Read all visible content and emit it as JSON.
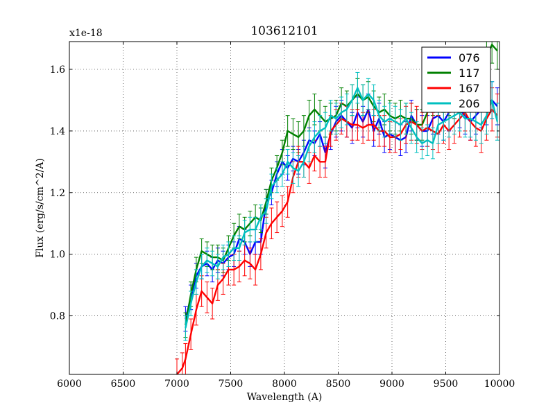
{
  "chart_data": {
    "type": "line",
    "title": "103612101",
    "xlabel": "Wavelength (A)",
    "ylabel": "Flux (erg/s/cm^2/A)",
    "offset_text": "x1e-18",
    "xlim": [
      6000,
      10000
    ],
    "ylim": [
      0.61,
      1.69
    ],
    "grid": true,
    "legend_position": "top-right",
    "x_ticks": [
      6000,
      6500,
      7000,
      7500,
      8000,
      8500,
      9000,
      9500,
      10000
    ],
    "x_tick_labels": [
      "6000",
      "6500",
      "7000",
      "7500",
      "8000",
      "8500",
      "9000",
      "9500",
      "10000"
    ],
    "y_ticks": [
      0.8,
      1.0,
      1.2,
      1.4,
      1.6
    ],
    "y_tick_labels": [
      "0.8",
      "1.0",
      "1.2",
      "1.4",
      "1.6"
    ],
    "series": [
      {
        "name": "076",
        "color": "#0000ff",
        "x": [
          7080,
          7130,
          7180,
          7230,
          7280,
          7330,
          7380,
          7430,
          7480,
          7530,
          7580,
          7630,
          7680,
          7730,
          7780,
          7830,
          7880,
          7930,
          7980,
          8030,
          8080,
          8130,
          8180,
          8230,
          8280,
          8330,
          8380,
          8430,
          8480,
          8530,
          8580,
          8630,
          8680,
          8730,
          8780,
          8830,
          8880,
          8930,
          8980,
          9030,
          9080,
          9130,
          9180,
          9230,
          9280,
          9330,
          9380,
          9430,
          9480,
          9530,
          9580,
          9630,
          9680,
          9730,
          9780,
          9830,
          9880,
          9930,
          9980
        ],
        "y": [
          0.79,
          0.86,
          0.93,
          0.96,
          0.97,
          0.95,
          0.98,
          0.97,
          0.99,
          1.0,
          1.05,
          1.04,
          1.0,
          1.04,
          1.04,
          1.17,
          1.2,
          1.26,
          1.3,
          1.28,
          1.31,
          1.3,
          1.33,
          1.37,
          1.36,
          1.39,
          1.33,
          1.39,
          1.43,
          1.45,
          1.43,
          1.41,
          1.46,
          1.43,
          1.47,
          1.4,
          1.44,
          1.38,
          1.39,
          1.38,
          1.37,
          1.38,
          1.45,
          1.42,
          1.4,
          1.4,
          1.44,
          1.45,
          1.43,
          1.46,
          1.5,
          1.47,
          1.45,
          1.43,
          1.45,
          1.47,
          1.48,
          1.5,
          1.48
        ],
        "err": [
          0.04,
          0.04,
          0.04,
          0.04,
          0.04,
          0.04,
          0.04,
          0.04,
          0.04,
          0.04,
          0.04,
          0.04,
          0.04,
          0.04,
          0.04,
          0.04,
          0.04,
          0.04,
          0.04,
          0.04,
          0.04,
          0.04,
          0.04,
          0.04,
          0.04,
          0.04,
          0.05,
          0.05,
          0.05,
          0.05,
          0.05,
          0.05,
          0.05,
          0.05,
          0.05,
          0.05,
          0.05,
          0.05,
          0.05,
          0.05,
          0.05,
          0.05,
          0.05,
          0.05,
          0.05,
          0.05,
          0.05,
          0.06,
          0.06,
          0.06,
          0.06,
          0.06,
          0.06,
          0.06,
          0.06,
          0.06,
          0.06,
          0.06,
          0.06
        ]
      },
      {
        "name": "117",
        "color": "#008000",
        "x": [
          7080,
          7130,
          7180,
          7230,
          7280,
          7330,
          7380,
          7430,
          7480,
          7530,
          7580,
          7630,
          7680,
          7730,
          7780,
          7830,
          7880,
          7930,
          7980,
          8030,
          8080,
          8130,
          8180,
          8230,
          8280,
          8330,
          8380,
          8430,
          8480,
          8530,
          8580,
          8630,
          8680,
          8730,
          8780,
          8830,
          8880,
          8930,
          8980,
          9030,
          9080,
          9130,
          9180,
          9230,
          9280,
          9330,
          9380,
          9430,
          9480,
          9530,
          9580,
          9630,
          9680,
          9730,
          9780,
          9830,
          9880,
          9930,
          9980
        ],
        "y": [
          0.77,
          0.87,
          0.95,
          1.01,
          1.0,
          0.99,
          0.99,
          0.98,
          1.02,
          1.06,
          1.09,
          1.08,
          1.1,
          1.12,
          1.11,
          1.17,
          1.24,
          1.28,
          1.33,
          1.4,
          1.39,
          1.38,
          1.4,
          1.45,
          1.47,
          1.45,
          1.43,
          1.44,
          1.45,
          1.49,
          1.48,
          1.5,
          1.52,
          1.5,
          1.51,
          1.48,
          1.46,
          1.47,
          1.45,
          1.44,
          1.45,
          1.44,
          1.44,
          1.42,
          1.42,
          1.46,
          1.5,
          1.51,
          1.52,
          1.51,
          1.5,
          1.52,
          1.55,
          1.56,
          1.58,
          1.6,
          1.64,
          1.68,
          1.66
        ],
        "err": [
          0.04,
          0.04,
          0.04,
          0.04,
          0.04,
          0.04,
          0.04,
          0.04,
          0.04,
          0.04,
          0.04,
          0.04,
          0.04,
          0.04,
          0.04,
          0.04,
          0.04,
          0.04,
          0.04,
          0.05,
          0.05,
          0.05,
          0.05,
          0.05,
          0.05,
          0.05,
          0.05,
          0.05,
          0.05,
          0.05,
          0.05,
          0.05,
          0.05,
          0.05,
          0.05,
          0.05,
          0.05,
          0.05,
          0.05,
          0.05,
          0.05,
          0.05,
          0.05,
          0.05,
          0.05,
          0.05,
          0.05,
          0.06,
          0.06,
          0.06,
          0.06,
          0.06,
          0.06,
          0.06,
          0.06,
          0.06,
          0.06,
          0.06,
          0.06
        ]
      },
      {
        "name": "167",
        "color": "#ff0000",
        "x": [
          7000,
          7050,
          7080,
          7130,
          7180,
          7230,
          7280,
          7330,
          7380,
          7430,
          7480,
          7530,
          7580,
          7630,
          7680,
          7730,
          7780,
          7830,
          7880,
          7930,
          7980,
          8030,
          8080,
          8130,
          8180,
          8230,
          8280,
          8330,
          8380,
          8430,
          8480,
          8530,
          8580,
          8630,
          8680,
          8730,
          8780,
          8830,
          8880,
          8930,
          8980,
          9030,
          9080,
          9130,
          9180,
          9230,
          9280,
          9330,
          9380,
          9430,
          9480,
          9530,
          9580,
          9630,
          9680,
          9730,
          9780,
          9830,
          9880,
          9930,
          9980
        ],
        "y": [
          0.61,
          0.63,
          0.66,
          0.74,
          0.82,
          0.88,
          0.86,
          0.84,
          0.9,
          0.92,
          0.95,
          0.95,
          0.96,
          0.98,
          0.97,
          0.95,
          1.0,
          1.07,
          1.1,
          1.12,
          1.14,
          1.17,
          1.25,
          1.3,
          1.3,
          1.28,
          1.32,
          1.3,
          1.3,
          1.4,
          1.42,
          1.44,
          1.43,
          1.42,
          1.42,
          1.41,
          1.42,
          1.42,
          1.4,
          1.4,
          1.38,
          1.38,
          1.39,
          1.42,
          1.43,
          1.42,
          1.4,
          1.41,
          1.4,
          1.39,
          1.42,
          1.4,
          1.42,
          1.44,
          1.46,
          1.43,
          1.41,
          1.4,
          1.44,
          1.47,
          1.45
        ],
        "err": [
          0.05,
          0.05,
          0.05,
          0.05,
          0.05,
          0.05,
          0.05,
          0.05,
          0.05,
          0.05,
          0.05,
          0.05,
          0.05,
          0.05,
          0.05,
          0.05,
          0.05,
          0.05,
          0.05,
          0.05,
          0.05,
          0.05,
          0.05,
          0.05,
          0.05,
          0.05,
          0.05,
          0.05,
          0.05,
          0.05,
          0.05,
          0.05,
          0.05,
          0.05,
          0.05,
          0.05,
          0.05,
          0.05,
          0.05,
          0.05,
          0.05,
          0.05,
          0.05,
          0.06,
          0.06,
          0.06,
          0.06,
          0.06,
          0.06,
          0.06,
          0.06,
          0.06,
          0.06,
          0.06,
          0.06,
          0.06,
          0.06,
          0.07,
          0.07,
          0.07,
          0.07
        ]
      },
      {
        "name": "206",
        "color": "#00bfbf",
        "x": [
          7080,
          7130,
          7180,
          7230,
          7280,
          7330,
          7380,
          7430,
          7480,
          7530,
          7580,
          7630,
          7680,
          7730,
          7780,
          7830,
          7880,
          7930,
          7980,
          8030,
          8080,
          8130,
          8180,
          8230,
          8280,
          8330,
          8380,
          8430,
          8480,
          8530,
          8580,
          8630,
          8680,
          8730,
          8780,
          8830,
          8880,
          8930,
          8980,
          9030,
          9080,
          9130,
          9180,
          9230,
          9280,
          9330,
          9380,
          9430,
          9480,
          9530,
          9580,
          9630,
          9680,
          9730,
          9780,
          9830,
          9880,
          9930,
          9980
        ],
        "y": [
          0.76,
          0.84,
          0.91,
          0.96,
          0.98,
          0.97,
          0.96,
          0.99,
          1.0,
          1.02,
          1.02,
          1.07,
          1.08,
          1.08,
          1.12,
          1.14,
          1.22,
          1.24,
          1.26,
          1.3,
          1.28,
          1.27,
          1.3,
          1.35,
          1.38,
          1.4,
          1.41,
          1.45,
          1.44,
          1.46,
          1.47,
          1.5,
          1.54,
          1.5,
          1.52,
          1.5,
          1.45,
          1.43,
          1.44,
          1.43,
          1.42,
          1.44,
          1.41,
          1.38,
          1.36,
          1.37,
          1.36,
          1.42,
          1.43,
          1.44,
          1.45,
          1.46,
          1.44,
          1.44,
          1.43,
          1.42,
          1.45,
          1.5,
          1.43
        ],
        "err": [
          0.04,
          0.04,
          0.04,
          0.04,
          0.04,
          0.04,
          0.04,
          0.04,
          0.04,
          0.04,
          0.04,
          0.04,
          0.04,
          0.04,
          0.04,
          0.04,
          0.04,
          0.04,
          0.04,
          0.04,
          0.05,
          0.05,
          0.05,
          0.05,
          0.05,
          0.05,
          0.05,
          0.05,
          0.05,
          0.05,
          0.05,
          0.05,
          0.05,
          0.05,
          0.05,
          0.05,
          0.05,
          0.05,
          0.05,
          0.05,
          0.05,
          0.05,
          0.05,
          0.05,
          0.05,
          0.05,
          0.05,
          0.06,
          0.06,
          0.06,
          0.06,
          0.06,
          0.06,
          0.06,
          0.06,
          0.06,
          0.06,
          0.06,
          0.06
        ]
      }
    ]
  }
}
